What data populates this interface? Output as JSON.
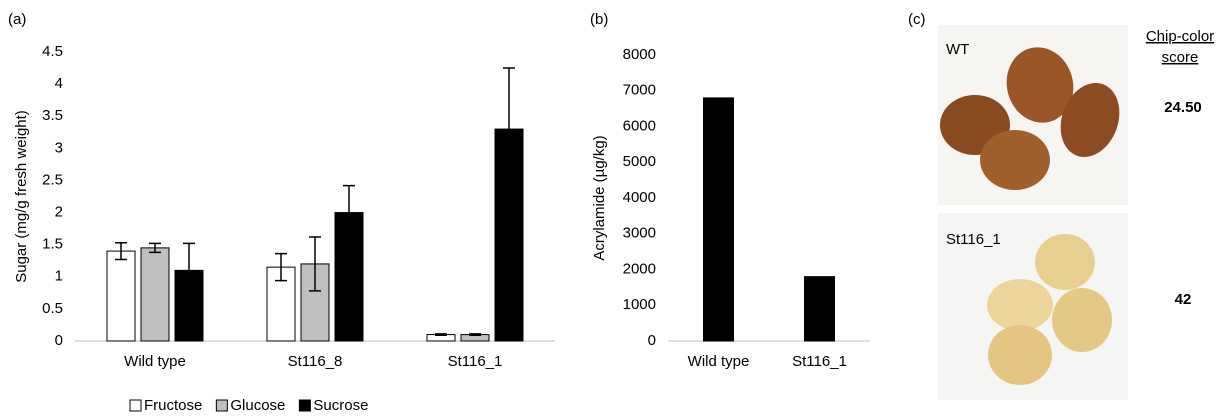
{
  "chart_data": [
    {
      "type": "bar",
      "panel_label": "(a)",
      "y_label": "Sugar (mg/g fresh weight)",
      "categories": [
        "Wild type",
        "St116_8",
        "St116_1"
      ],
      "series": [
        {
          "name": "Fructose",
          "color": "#ffffff",
          "values": [
            1.4,
            1.15,
            0.1
          ],
          "errors": [
            0.13,
            0.21,
            0.01
          ]
        },
        {
          "name": "Glucose",
          "color": "#bfbfbf",
          "values": [
            1.45,
            1.2,
            0.1
          ],
          "errors": [
            0.07,
            0.42,
            0.01
          ]
        },
        {
          "name": "Sucrose",
          "color": "#000000",
          "values": [
            1.1,
            2.0,
            3.3
          ],
          "errors": [
            0.42,
            0.42,
            0.95
          ]
        }
      ],
      "ylim": [
        0,
        4.5
      ],
      "yticks": [
        0,
        0.5,
        1,
        1.5,
        2,
        2.5,
        3,
        3.5,
        4,
        4.5
      ],
      "grid": false,
      "legend": "bottom"
    },
    {
      "type": "bar",
      "panel_label": "(b)",
      "y_label": "Acrylamide (µg/kg)",
      "categories": [
        "Wild type",
        "St116_1"
      ],
      "values": [
        6800,
        1800
      ],
      "color": "#000000",
      "ylim": [
        0,
        8000
      ],
      "yticks": [
        0,
        1000,
        2000,
        3000,
        4000,
        5000,
        6000,
        7000,
        8000
      ],
      "grid": false
    }
  ],
  "panel_c": {
    "panel_label": "(c)",
    "header": [
      "Chip-color",
      "score"
    ],
    "rows": [
      {
        "label": "WT",
        "score": "24.50"
      },
      {
        "label": "St116_1",
        "score": "42"
      }
    ]
  }
}
